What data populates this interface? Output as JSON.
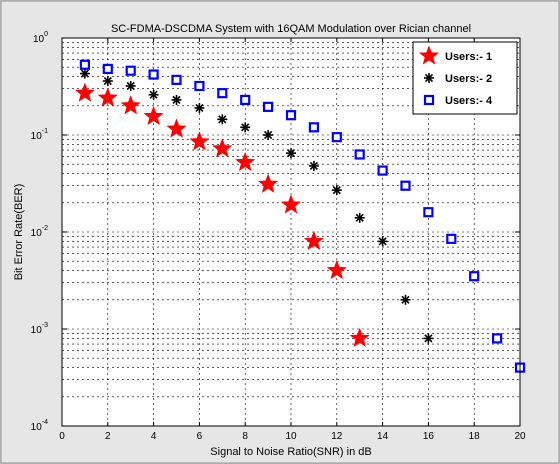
{
  "chart_data": {
    "type": "scatter",
    "title": "SC-FDMA-DSCDMA System with 16QAM Modulation over Rician channel",
    "xlabel": "Signal to Noise Ratio(SNR) in dB",
    "ylabel": "Bit  Error Rate(BER)",
    "xlim": [
      0,
      20
    ],
    "ylim": [
      0.0001,
      1
    ],
    "yscale": "log",
    "grid": true,
    "legend_position": "top-right",
    "x_ticks": [
      "0",
      "2",
      "4",
      "6",
      "8",
      "10",
      "12",
      "14",
      "16",
      "18",
      "20"
    ],
    "y_tick_base": "10",
    "y_tick_exponents": [
      "0",
      "-1",
      "-2",
      "-3",
      "-4"
    ],
    "series": [
      {
        "name": "Users:- 1",
        "marker": "star",
        "color": "#ff0000",
        "x": [
          1,
          2,
          3,
          4,
          5,
          6,
          7,
          8,
          9,
          10,
          11,
          12,
          13
        ],
        "y": [
          0.27,
          0.24,
          0.2,
          0.155,
          0.115,
          0.085,
          0.072,
          0.052,
          0.031,
          0.019,
          0.008,
          0.004,
          0.0008
        ]
      },
      {
        "name": "Users:- 2",
        "marker": "asterisk",
        "color": "#000000",
        "x": [
          1,
          2,
          3,
          4,
          5,
          6,
          7,
          8,
          9,
          10,
          11,
          12,
          13,
          14,
          15,
          16
        ],
        "y": [
          0.43,
          0.36,
          0.32,
          0.26,
          0.23,
          0.19,
          0.145,
          0.12,
          0.1,
          0.065,
          0.048,
          0.027,
          0.014,
          0.008,
          0.002,
          0.0008
        ]
      },
      {
        "name": "Users:- 4",
        "marker": "square",
        "color": "#0000ff",
        "x": [
          1,
          2,
          3,
          4,
          5,
          6,
          7,
          8,
          9,
          10,
          11,
          12,
          13,
          14,
          15,
          16,
          17,
          18,
          19,
          20
        ],
        "y": [
          0.53,
          0.48,
          0.46,
          0.42,
          0.37,
          0.32,
          0.27,
          0.23,
          0.195,
          0.16,
          0.12,
          0.095,
          0.063,
          0.043,
          0.03,
          0.016,
          0.0085,
          0.0035,
          0.0008,
          0.0004
        ]
      }
    ]
  }
}
